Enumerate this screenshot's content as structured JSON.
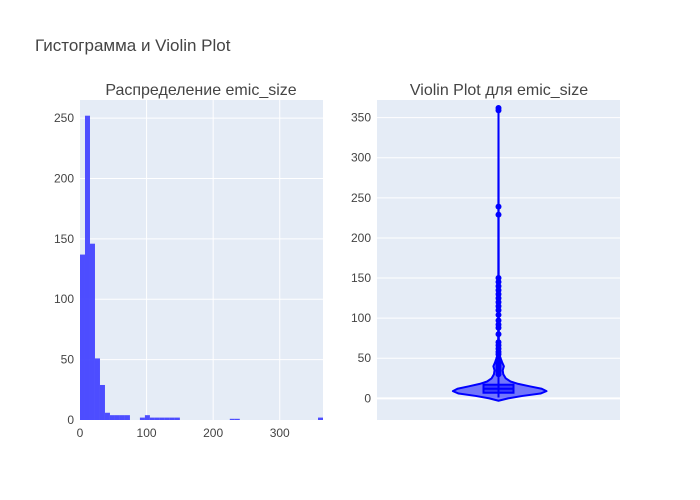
{
  "figure": {
    "title": "Гистограмма и Violin Plot"
  },
  "chart_data": [
    {
      "type": "histogram",
      "title": "Распределение emic_size",
      "xlabel": "",
      "ylabel": "",
      "xlim": [
        0,
        365
      ],
      "ylim": [
        0,
        265
      ],
      "x_ticks": [
        0,
        100,
        200,
        300
      ],
      "y_ticks": [
        0,
        50,
        100,
        150,
        200,
        250
      ],
      "grid": true,
      "color": "#4444ff",
      "bin_width": 7.5,
      "bins": [
        {
          "x0": 0,
          "x1": 7.5,
          "count": 137
        },
        {
          "x0": 7.5,
          "x1": 15,
          "count": 252
        },
        {
          "x0": 15,
          "x1": 22.5,
          "count": 146
        },
        {
          "x0": 22.5,
          "x1": 30,
          "count": 51
        },
        {
          "x0": 30,
          "x1": 37.5,
          "count": 29
        },
        {
          "x0": 37.5,
          "x1": 45,
          "count": 6
        },
        {
          "x0": 45,
          "x1": 52.5,
          "count": 4
        },
        {
          "x0": 52.5,
          "x1": 60,
          "count": 4
        },
        {
          "x0": 60,
          "x1": 67.5,
          "count": 4
        },
        {
          "x0": 67.5,
          "x1": 75,
          "count": 4
        },
        {
          "x0": 90,
          "x1": 97.5,
          "count": 2
        },
        {
          "x0": 97.5,
          "x1": 105,
          "count": 4
        },
        {
          "x0": 105,
          "x1": 112.5,
          "count": 2
        },
        {
          "x0": 112.5,
          "x1": 120,
          "count": 2
        },
        {
          "x0": 120,
          "x1": 127.5,
          "count": 2
        },
        {
          "x0": 127.5,
          "x1": 135,
          "count": 2
        },
        {
          "x0": 135,
          "x1": 142.5,
          "count": 2
        },
        {
          "x0": 142.5,
          "x1": 150,
          "count": 2
        },
        {
          "x0": 225,
          "x1": 232.5,
          "count": 1
        },
        {
          "x0": 232.5,
          "x1": 240,
          "count": 1
        },
        {
          "x0": 357.5,
          "x1": 365,
          "count": 2
        }
      ]
    },
    {
      "type": "violin",
      "title": "Violin Plot для emic_size",
      "xlabel": "",
      "ylabel": "",
      "ylim": [
        -27,
        372
      ],
      "y_ticks": [
        0,
        50,
        100,
        150,
        200,
        250,
        300,
        350
      ],
      "grid": true,
      "color": "#0000ff",
      "box": {
        "q1": 7,
        "median": 12,
        "q3": 17,
        "whisker_low": 1,
        "whisker_high": 33
      },
      "kde": [
        {
          "y": -3,
          "w": 0.0
        },
        {
          "y": 0,
          "w": 0.16
        },
        {
          "y": 3,
          "w": 0.4
        },
        {
          "y": 6,
          "w": 0.7
        },
        {
          "y": 9,
          "w": 0.8
        },
        {
          "y": 12,
          "w": 0.72
        },
        {
          "y": 15,
          "w": 0.52
        },
        {
          "y": 18,
          "w": 0.33
        },
        {
          "y": 21,
          "w": 0.2
        },
        {
          "y": 25,
          "w": 0.12
        },
        {
          "y": 30,
          "w": 0.08
        },
        {
          "y": 35,
          "w": 0.07
        },
        {
          "y": 40,
          "w": 0.09
        },
        {
          "y": 45,
          "w": 0.06
        },
        {
          "y": 52,
          "w": 0.025
        },
        {
          "y": 60,
          "w": 0.012
        },
        {
          "y": 70,
          "w": 0.006
        },
        {
          "y": 90,
          "w": 0.004
        },
        {
          "y": 150,
          "w": 0.003
        },
        {
          "y": 240,
          "w": 0.002
        },
        {
          "y": 362,
          "w": 0.0
        }
      ],
      "points": [
        30,
        33,
        35,
        37,
        39,
        40,
        41,
        42,
        43,
        44,
        45,
        46,
        48,
        50,
        55,
        58,
        62,
        66,
        70,
        80,
        88,
        92,
        97,
        104,
        110,
        115,
        120,
        125,
        130,
        135,
        140,
        145,
        150,
        229,
        239,
        359,
        362
      ]
    }
  ]
}
